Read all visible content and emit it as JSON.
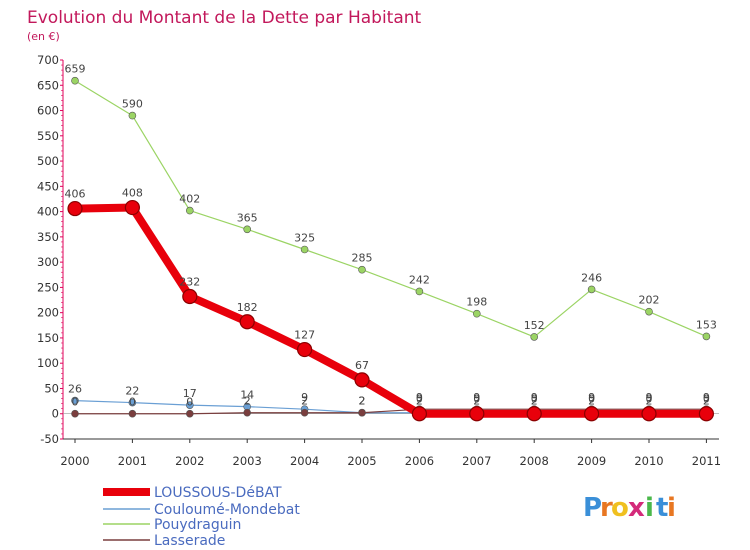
{
  "chart_data": {
    "type": "line",
    "title": "Evolution du Montant de la Dette par Habitant",
    "subtitle": "(en €)",
    "xlabel": "",
    "ylabel": "",
    "ylim": [
      -50,
      700
    ],
    "yticks": [
      "-50",
      "0",
      "50",
      "100",
      "150",
      "200",
      "250",
      "300",
      "350",
      "400",
      "450",
      "500",
      "550",
      "600",
      "650",
      "700"
    ],
    "grid": false,
    "legend_position": "bottom-left",
    "categories": [
      "2000",
      "2001",
      "2002",
      "2003",
      "2004",
      "2005",
      "2006",
      "2007",
      "2008",
      "2009",
      "2010",
      "2011"
    ],
    "series": [
      {
        "name": "LOUSSOUS-DéBAT",
        "color": "#e8000b",
        "values": [
          406,
          408,
          232,
          182,
          127,
          67,
          0,
          0,
          0,
          0,
          0,
          0
        ],
        "labels": [
          "406",
          "408",
          "232",
          "182",
          "127",
          "67",
          "0",
          "0",
          "0",
          "0",
          "0",
          "0"
        ]
      },
      {
        "name": "Couloumé-Mondebat",
        "color": "#6a9fd4",
        "values": [
          26,
          22,
          17,
          14,
          9,
          2,
          2,
          2,
          2,
          2,
          2,
          2
        ],
        "labels": [
          "26",
          "22",
          "17",
          "14",
          "9",
          "2",
          "2",
          "2",
          "2",
          "2",
          "2",
          "2"
        ]
      },
      {
        "name": "Pouydraguin",
        "color": "#9bd464",
        "values": [
          659,
          590,
          402,
          365,
          325,
          285,
          242,
          198,
          152,
          246,
          202,
          153
        ],
        "labels": [
          "659",
          "590",
          "402",
          "365",
          "325",
          "285",
          "242",
          "198",
          "152",
          "246",
          "202",
          "153"
        ]
      },
      {
        "name": "Lasserade",
        "color": "#7a3e3e",
        "values": [
          0,
          0,
          0,
          2,
          2,
          2,
          9,
          9,
          9,
          9,
          9,
          9
        ],
        "labels": [
          "0",
          "0",
          "0",
          "2",
          "2",
          "2",
          "9",
          "9",
          "9",
          "9",
          "9",
          "9"
        ]
      }
    ]
  },
  "logo": {
    "letters": [
      "P",
      "r",
      "o",
      "x",
      "i",
      "t",
      "i"
    ],
    "colors": [
      "#3a8fd8",
      "#e87722",
      "#f0c020",
      "#d42a7a",
      "#4ab84a",
      "#3a8fd8",
      "#e87722"
    ]
  }
}
